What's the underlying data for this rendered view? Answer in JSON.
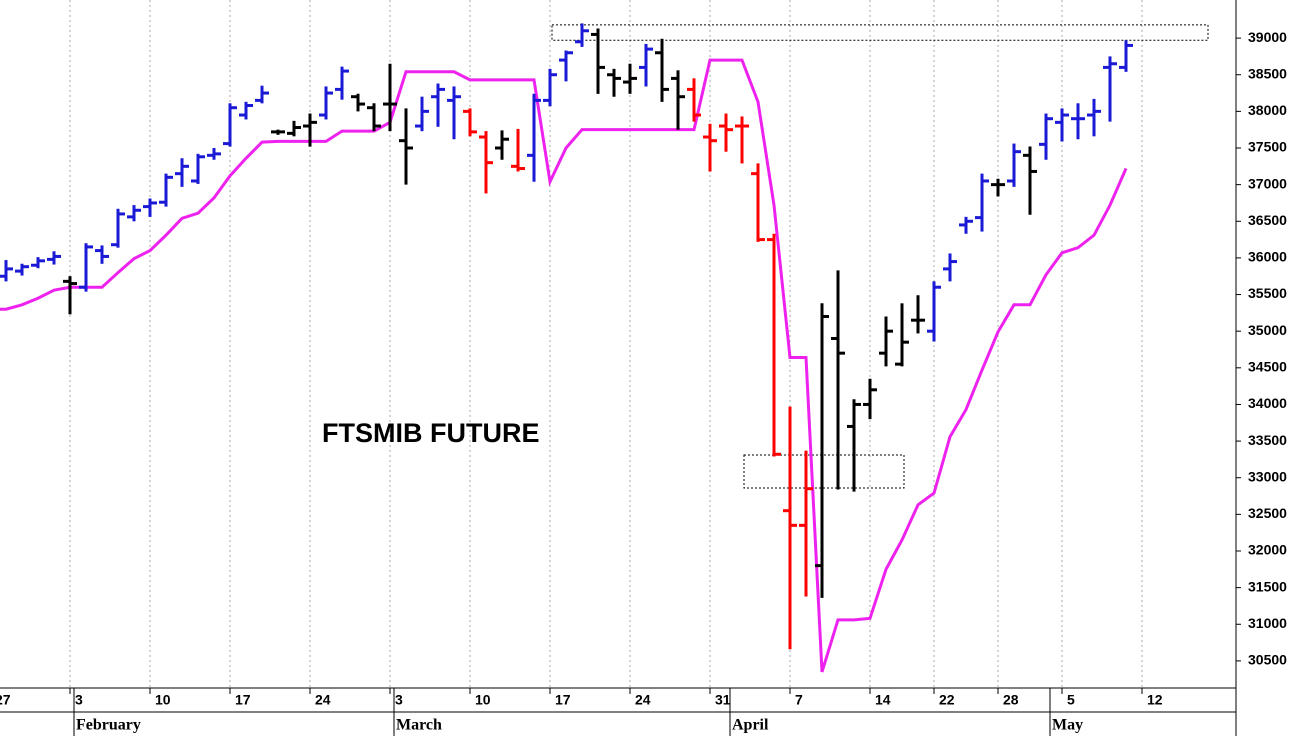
{
  "chart_data": {
    "type": "ohlc",
    "title": "FTSMIB FUTURE",
    "categories": [
      "27",
      null,
      null,
      null,
      null,
      "3",
      null,
      null,
      null,
      null,
      "10",
      null,
      null,
      null,
      null,
      "17",
      null,
      null,
      null,
      null,
      "24",
      null,
      null,
      null,
      null,
      "3",
      null,
      null,
      null,
      null,
      "10",
      null,
      null,
      null,
      null,
      "17",
      null,
      null,
      null,
      null,
      "24",
      null,
      null,
      null,
      null,
      "31",
      null,
      null,
      null,
      null,
      "7",
      null,
      null,
      null,
      null,
      "14",
      null,
      null,
      null,
      "22",
      null,
      null,
      null,
      "28",
      null,
      null,
      null,
      "5",
      null,
      null,
      null,
      null,
      "12",
      null,
      null,
      null,
      null,
      null
    ],
    "months": [
      null,
      null,
      null,
      null,
      null,
      "February",
      null,
      null,
      null,
      null,
      null,
      null,
      null,
      null,
      null,
      null,
      null,
      null,
      null,
      null,
      null,
      null,
      null,
      null,
      null,
      "March",
      null,
      null,
      null,
      null,
      null,
      null,
      null,
      null,
      null,
      null,
      null,
      null,
      null,
      null,
      null,
      null,
      null,
      null,
      null,
      null,
      "April",
      null,
      null,
      null,
      null,
      null,
      null,
      null,
      null,
      null,
      null,
      null,
      null,
      null,
      null,
      null,
      null,
      null,
      null,
      null,
      "May",
      null,
      null,
      null,
      null,
      null,
      null,
      null,
      null,
      null,
      null,
      null
    ],
    "open": [
      null,
      35750,
      35820,
      35900,
      35980,
      35680,
      35600,
      36100,
      36180,
      36560,
      36700,
      36760,
      37150,
      37050,
      37400,
      37560,
      37950,
      38150,
      37720,
      37700,
      37800,
      37950,
      38300,
      38200,
      38050,
      38100,
      37600,
      37800,
      38200,
      38150,
      38000,
      37650,
      37500,
      37250,
      37400,
      38150,
      38700,
      38950,
      39050,
      38500,
      38400,
      38600,
      38800,
      38450,
      38300,
      37650,
      37800,
      37800,
      37150,
      36250,
      32550,
      32350,
      31800,
      34900,
      33700,
      34000,
      34700,
      34550,
      35150,
      35000,
      35850,
      36450,
      36550,
      37000,
      37050,
      37400,
      37550,
      37850,
      37900,
      37950,
      38600,
      38600,
      null,
      null,
      null,
      null,
      null,
      null
    ],
    "high": [
      null,
      35950,
      35900,
      35990,
      36070,
      35730,
      36180,
      36150,
      36650,
      36700,
      36790,
      37130,
      37340,
      37400,
      37480,
      38090,
      38110,
      38330,
      37730,
      37850,
      37950,
      38320,
      38590,
      38220,
      38090,
      38630,
      38020,
      38180,
      38360,
      38320,
      38020,
      37710,
      37720,
      37740,
      38220,
      38560,
      38810,
      39180,
      39110,
      38560,
      38630,
      38900,
      38970,
      38540,
      38430,
      37810,
      37950,
      37910,
      37270,
      36310,
      33950,
      33350,
      35360,
      35810,
      34050,
      34330,
      35180,
      35360,
      35470,
      35660,
      36040,
      36540,
      37130,
      37060,
      37540,
      37500,
      37950,
      38020,
      38090,
      38150,
      38730,
      38950,
      null,
      null,
      null,
      null,
      null,
      null
    ],
    "low": [
      null,
      35700,
      35780,
      35880,
      35930,
      35250,
      35560,
      35940,
      36160,
      36520,
      36580,
      36720,
      36990,
      37030,
      37360,
      37540,
      37910,
      38130,
      37700,
      37680,
      37540,
      37910,
      38180,
      38020,
      37750,
      37750,
      37020,
      37750,
      37810,
      37640,
      37680,
      36900,
      37360,
      37200,
      37060,
      38090,
      38430,
      38900,
      38260,
      38220,
      38260,
      38360,
      38150,
      37770,
      37880,
      37200,
      37470,
      37310,
      36240,
      33310,
      30680,
      31400,
      31380,
      32860,
      32830,
      33820,
      34540,
      34540,
      34990,
      34880,
      35700,
      36350,
      36380,
      36860,
      36990,
      36610,
      37360,
      37610,
      37640,
      37680,
      37880,
      38560,
      null,
      null,
      null,
      null,
      null,
      null
    ],
    "close": [
      null,
      35850,
      35880,
      35960,
      36020,
      35650,
      36150,
      36020,
      36600,
      36650,
      36750,
      37100,
      37250,
      37380,
      37420,
      38050,
      38080,
      38250,
      37720,
      37780,
      37850,
      38250,
      38550,
      38100,
      37800,
      38100,
      37500,
      38000,
      38300,
      38200,
      37720,
      37300,
      37620,
      37220,
      38150,
      38500,
      38800,
      39100,
      38600,
      38450,
      38450,
      38850,
      38300,
      38200,
      37950,
      37600,
      37750,
      37800,
      36250,
      33320,
      32350,
      32850,
      35200,
      34700,
      34000,
      34200,
      35000,
      34850,
      35150,
      35600,
      35950,
      36500,
      37050,
      37000,
      37450,
      37180,
      37900,
      37950,
      37900,
      38000,
      38650,
      38900,
      null,
      null,
      null,
      null,
      null,
      null
    ],
    "bar_colors": [
      null,
      "#1a1ad6",
      "#1a1ad6",
      "#1a1ad6",
      "#1a1ad6",
      "#000000",
      "#1a1ad6",
      "#1a1ad6",
      "#1a1ad6",
      "#1a1ad6",
      "#1a1ad6",
      "#1a1ad6",
      "#1a1ad6",
      "#1a1ad6",
      "#1a1ad6",
      "#1a1ad6",
      "#1a1ad6",
      "#1a1ad6",
      "#000000",
      "#000000",
      "#000000",
      "#1a1ad6",
      "#1a1ad6",
      "#000000",
      "#000000",
      "#000000",
      "#000000",
      "#1a1ad6",
      "#1a1ad6",
      "#1a1ad6",
      "#ff0000",
      "#ff0000",
      "#000000",
      "#ff0000",
      "#1a1ad6",
      "#1a1ad6",
      "#1a1ad6",
      "#1a1ad6",
      "#000000",
      "#000000",
      "#000000",
      "#1a1ad6",
      "#000000",
      "#000000",
      "#ff0000",
      "#ff0000",
      "#ff0000",
      "#ff0000",
      "#ff0000",
      "#ff0000",
      "#ff0000",
      "#ff0000",
      "#000000",
      "#000000",
      "#000000",
      "#000000",
      "#000000",
      "#000000",
      "#000000",
      "#1a1ad6",
      "#1a1ad6",
      "#1a1ad6",
      "#1a1ad6",
      "#000000",
      "#1a1ad6",
      "#000000",
      "#1a1ad6",
      "#1a1ad6",
      "#1a1ad6",
      "#1a1ad6",
      "#1a1ad6",
      "#1a1ad6",
      null,
      null,
      null,
      null,
      null,
      null
    ],
    "line": {
      "color": "#ee22ee",
      "values": [
        35300,
        35300,
        35360,
        35450,
        35560,
        35600,
        35600,
        35600,
        35800,
        35990,
        36100,
        36310,
        36540,
        36610,
        36820,
        37120,
        37360,
        37580,
        37590,
        37590,
        37590,
        37590,
        37730,
        37730,
        37730,
        37850,
        38540,
        38540,
        38540,
        38540,
        38430,
        38430,
        38430,
        38430,
        38430,
        37040,
        37500,
        37750,
        37750,
        37750,
        37750,
        37750,
        37750,
        37750,
        37750,
        38700,
        38700,
        38700,
        38130,
        36720,
        34640,
        34640,
        30350,
        31060,
        31060,
        31080,
        31750,
        32150,
        32630,
        32790,
        33560,
        33930,
        34470,
        34990,
        35360,
        35360,
        35770,
        36070,
        36140,
        36310,
        36720,
        37220,
        null,
        null,
        null,
        null,
        null,
        null
      ]
    },
    "zones": [
      {
        "start": 35,
        "end": 76,
        "low": 38970,
        "high": 39180
      },
      {
        "start": 47,
        "end": 57,
        "low": 32860,
        "high": 33310
      }
    ],
    "ylim": [
      30130,
      39520
    ],
    "yticks": [
      30500,
      31000,
      31500,
      32000,
      32500,
      33000,
      33500,
      34000,
      34500,
      35000,
      35500,
      36000,
      36500,
      37000,
      37500,
      38000,
      38500,
      39000
    ],
    "grid": true
  }
}
